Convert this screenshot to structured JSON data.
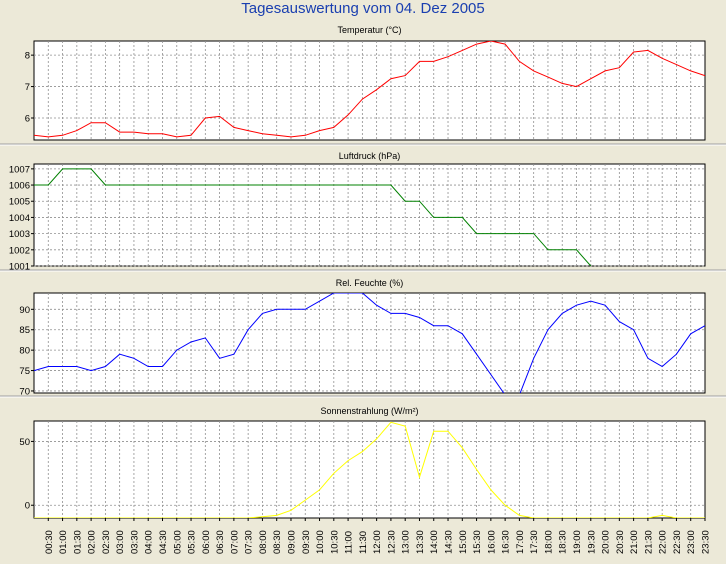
{
  "title": "Tagesauswertung vom 04. Dez 2005",
  "x_tick_labels": [
    "00:30",
    "01:00",
    "01:30",
    "02:00",
    "02:30",
    "03:00",
    "03:30",
    "04:00",
    "04:30",
    "05:00",
    "05:30",
    "06:00",
    "06:30",
    "07:00",
    "07:30",
    "08:00",
    "08:30",
    "09:00",
    "09:30",
    "10:00",
    "10:30",
    "11:00",
    "11:30",
    "12:00",
    "12:30",
    "13:00",
    "13:30",
    "14:00",
    "14:30",
    "15:00",
    "15:30",
    "16:00",
    "16:30",
    "17:00",
    "17:30",
    "18:00",
    "18:30",
    "19:00",
    "19:30",
    "20:00",
    "20:30",
    "21:00",
    "21:30",
    "22:00",
    "22:30",
    "23:00",
    "23:30"
  ],
  "chart_data": [
    {
      "type": "line",
      "title": "Temperatur (°C)",
      "color": "#ff0000",
      "ylim": [
        5.3,
        8.45
      ],
      "yticks": [
        6,
        7,
        8
      ],
      "x": [
        0,
        0.5,
        1,
        1.5,
        2,
        2.5,
        3,
        3.5,
        4,
        4.5,
        5,
        5.5,
        6,
        6.5,
        7,
        7.5,
        8,
        8.5,
        9,
        9.5,
        10,
        10.5,
        11,
        11.5,
        12,
        12.5,
        13,
        13.5,
        14,
        14.5,
        15,
        15.5,
        16,
        16.5,
        17,
        17.5,
        18,
        18.5,
        19,
        19.5,
        20,
        20.5,
        21,
        21.5,
        22,
        22.5,
        23,
        23.5
      ],
      "y": [
        5.45,
        5.4,
        5.45,
        5.6,
        5.85,
        5.85,
        5.55,
        5.55,
        5.5,
        5.5,
        5.4,
        5.45,
        6.0,
        6.05,
        5.7,
        5.6,
        5.5,
        5.45,
        5.4,
        5.45,
        5.6,
        5.7,
        6.1,
        6.6,
        6.9,
        7.25,
        7.35,
        7.8,
        7.8,
        7.95,
        8.15,
        8.35,
        8.45,
        8.35,
        7.8,
        7.5,
        7.3,
        7.1,
        7.0,
        7.25,
        7.5,
        7.6,
        8.1,
        8.15,
        7.9,
        7.7,
        7.5,
        7.35
      ]
    },
    {
      "type": "line",
      "title": "Luftdruck (hPa)",
      "color": "#008000",
      "ylim": [
        1001,
        1007.3
      ],
      "yticks": [
        1001,
        1002,
        1003,
        1004,
        1005,
        1006,
        1007
      ],
      "x": [
        0,
        0.5,
        1,
        1.5,
        2,
        2.5,
        3,
        3.5,
        4,
        4.5,
        5,
        5.5,
        6,
        6.5,
        7,
        7.5,
        8,
        8.5,
        9,
        9.5,
        10,
        10.5,
        11,
        11.5,
        12,
        12.5,
        13,
        13.5,
        14,
        14.5,
        15,
        15.5,
        16,
        16.5,
        17,
        17.5,
        18,
        18.5,
        19,
        19.5
      ],
      "y": [
        1006,
        1006,
        1007,
        1007,
        1007,
        1006,
        1006,
        1006,
        1006,
        1006,
        1006,
        1006,
        1006,
        1006,
        1006,
        1006,
        1006,
        1006,
        1006,
        1006,
        1006,
        1006,
        1006,
        1006,
        1006,
        1006,
        1005,
        1005,
        1004,
        1004,
        1004,
        1003,
        1003,
        1003,
        1003,
        1003,
        1002,
        1002,
        1002,
        1001
      ]
    },
    {
      "type": "line",
      "title": "Rel. Feuchte (%)",
      "color": "#0000ff",
      "ylim": [
        69.5,
        94
      ],
      "yticks": [
        70,
        75,
        80,
        85,
        90
      ],
      "x": [
        0,
        0.5,
        1,
        1.5,
        2,
        2.5,
        3,
        3.5,
        4,
        4.5,
        5,
        5.5,
        6,
        6.5,
        7,
        7.5,
        8,
        8.5,
        9,
        9.5,
        10,
        10.5,
        11,
        11.5,
        12,
        12.5,
        13,
        13.5,
        14,
        14.5,
        15,
        15.5,
        16,
        16.5,
        17,
        17.5,
        18,
        18.5,
        19,
        19.5,
        20,
        20.5,
        21,
        21.5,
        22,
        22.5,
        23,
        23.5
      ],
      "y": [
        75,
        76,
        76,
        76,
        75,
        76,
        79,
        78,
        76,
        76,
        80,
        82,
        83,
        78,
        79,
        85,
        89,
        90,
        90,
        90,
        92,
        94,
        94,
        94,
        91,
        89,
        89,
        88,
        86,
        86,
        84,
        79,
        74,
        69,
        69,
        78,
        85,
        89,
        91,
        92,
        91,
        87,
        85,
        78,
        76,
        79,
        84,
        86
      ]
    },
    {
      "type": "line",
      "title": "Sonnenstrahlung (W/m²)",
      "color": "#ffff00",
      "ylim": [
        -10,
        66
      ],
      "yticks": [
        0,
        50
      ],
      "x": [
        0,
        0.5,
        1,
        1.5,
        2,
        2.5,
        3,
        3.5,
        4,
        4.5,
        5,
        5.5,
        6,
        6.5,
        7,
        7.5,
        8,
        8.5,
        9,
        9.5,
        10,
        10.5,
        11,
        11.5,
        12,
        12.5,
        13,
        13.5,
        14,
        14.5,
        15,
        15.5,
        16,
        16.5,
        17,
        17.5,
        18,
        18.5,
        19,
        19.5,
        20,
        20.5,
        21,
        21.5,
        22,
        22.5,
        23,
        23.5
      ],
      "y": [
        -10,
        -10,
        -10,
        -10,
        -10,
        -10,
        -10,
        -10,
        -10,
        -10,
        -10,
        -10,
        -10,
        -10,
        -10,
        -10,
        -9,
        -8,
        -4,
        4,
        12,
        25,
        35,
        42,
        52,
        65,
        62,
        22,
        58,
        58,
        45,
        28,
        12,
        0,
        -8,
        -10,
        -10,
        -10,
        -10,
        -10,
        -10,
        -10,
        -10,
        -10,
        -8,
        -10,
        -10,
        -10
      ]
    }
  ]
}
